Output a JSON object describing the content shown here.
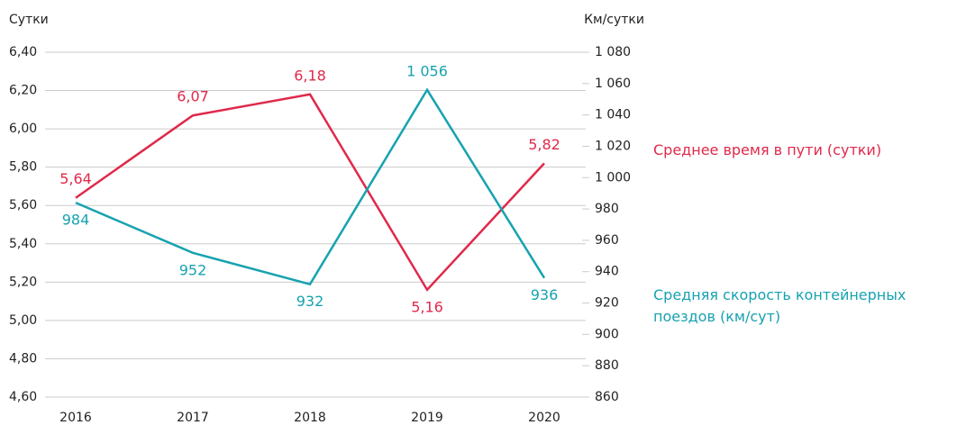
{
  "chart_data": {
    "type": "line",
    "y_label": "Сутки",
    "y2_label": "Км/сутки",
    "categories": [
      "2016",
      "2017",
      "2018",
      "2019",
      "2020"
    ],
    "series": [
      {
        "name": "Среднее время в пути (сутки)",
        "color": "#e0294a",
        "values": [
          5.64,
          6.07,
          6.18,
          5.16,
          5.82
        ],
        "value_labels": [
          "5,64",
          "6,07",
          "6,18",
          "5,16",
          "5,82"
        ]
      },
      {
        "name": "Средняя скорость контейнерных поездов (км/сут)",
        "color": "#17a2b0",
        "axis": "y2",
        "values": [
          984,
          952,
          932,
          1056,
          936
        ],
        "value_labels": [
          "984",
          "952",
          "932",
          "1 056",
          "936"
        ]
      }
    ],
    "ylim": [
      4.6,
      6.4
    ],
    "yticks": [
      {
        "value": 4.6,
        "label": "4,60"
      },
      {
        "value": 4.8,
        "label": "4,80"
      },
      {
        "value": 5.0,
        "label": "5,00"
      },
      {
        "value": 5.2,
        "label": "5,20"
      },
      {
        "value": 5.4,
        "label": "5,40"
      },
      {
        "value": 5.6,
        "label": "5,60"
      },
      {
        "value": 5.8,
        "label": "5,80"
      },
      {
        "value": 6.0,
        "label": "6,00"
      },
      {
        "value": 6.2,
        "label": "6,20"
      },
      {
        "value": 6.4,
        "label": "6,40"
      }
    ],
    "y2lim": [
      860,
      1080
    ],
    "y2ticks": [
      860,
      880,
      900,
      920,
      940,
      960,
      980,
      {
        "value": 1000,
        "label": "1 000"
      },
      {
        "value": 1020,
        "label": "1 020"
      },
      {
        "value": 1040,
        "label": "1 040"
      },
      {
        "value": 1060,
        "label": "1 060"
      },
      {
        "value": 1080,
        "label": "1 080"
      }
    ],
    "grid": true
  }
}
